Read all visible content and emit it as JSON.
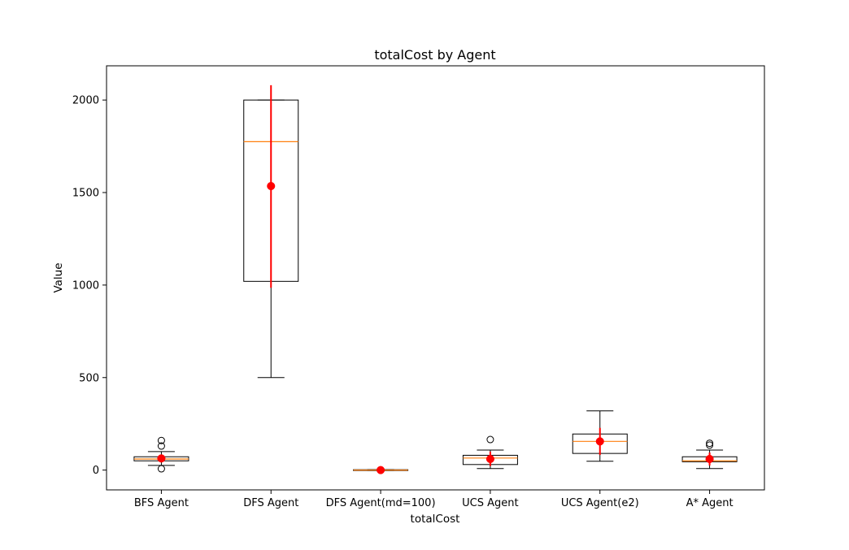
{
  "chart_data": {
    "type": "box",
    "title": "totalCost by Agent",
    "xlabel": "totalCost",
    "ylabel": "Value",
    "ylim": [
      -107,
      2185
    ],
    "yticks": [
      0,
      500,
      1000,
      1500,
      2000
    ],
    "grid": false,
    "colors": {
      "box": "#000000",
      "median": "#ff7f0e",
      "mean": "#ff0000",
      "errorbar": "#ff0000"
    },
    "categories": [
      "BFS Agent",
      "DFS Agent",
      "DFS Agent(md=100)",
      "UCS Agent",
      "UCS Agent(e2)",
      "A* Agent"
    ],
    "boxes": [
      {
        "q1": 50,
        "median": 60,
        "q3": 72,
        "whisker_low": 25,
        "whisker_high": 100,
        "mean": 63,
        "err_low": 42,
        "err_high": 84,
        "outliers": [
          160,
          130,
          7
        ]
      },
      {
        "q1": 1020,
        "median": 1775,
        "q3": 2000,
        "whisker_low": 500,
        "whisker_high": 2000,
        "mean": 1535,
        "err_low": 985,
        "err_high": 2080,
        "outliers": []
      },
      {
        "q1": -2,
        "median": 0,
        "q3": 2,
        "whisker_low": -2,
        "whisker_high": 2,
        "mean": 0,
        "err_low": -2,
        "err_high": 2,
        "outliers": []
      },
      {
        "q1": 30,
        "median": 65,
        "q3": 80,
        "whisker_low": 8,
        "whisker_high": 108,
        "mean": 60,
        "err_low": 22,
        "err_high": 100,
        "outliers": [
          165
        ]
      },
      {
        "q1": 90,
        "median": 155,
        "q3": 195,
        "whisker_low": 48,
        "whisker_high": 320,
        "mean": 155,
        "err_low": 82,
        "err_high": 228,
        "outliers": []
      },
      {
        "q1": 45,
        "median": 50,
        "q3": 72,
        "whisker_low": 8,
        "whisker_high": 108,
        "mean": 60,
        "err_low": 25,
        "err_high": 95,
        "outliers": [
          145,
          135
        ]
      }
    ]
  }
}
